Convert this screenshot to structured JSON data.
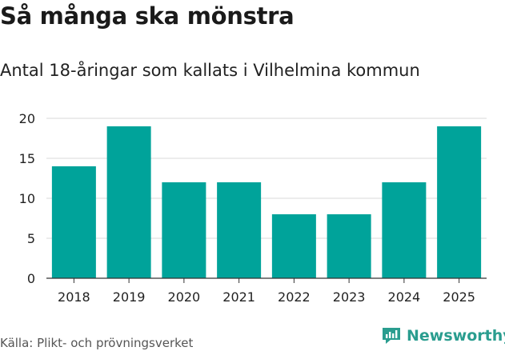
{
  "header": {
    "title": "Så många ska mönstra",
    "subtitle": "Antal 18-åringar som kallats i Vilhelmina kommun"
  },
  "footer": {
    "source": "Källa: Plikt- och prövningsverket",
    "brand": "Newsworthy"
  },
  "colors": {
    "bar": "#00a39a",
    "grid": "#d9d9d9",
    "brand": "#2a9d8f"
  },
  "icons": {
    "brand_logo": "newsworthy-chart-icon"
  },
  "chart_data": {
    "type": "bar",
    "categories": [
      "2018",
      "2019",
      "2020",
      "2021",
      "2022",
      "2023",
      "2024",
      "2025"
    ],
    "values": [
      14,
      19,
      12,
      12,
      8,
      8,
      12,
      19
    ],
    "y_ticks": [
      "0",
      "5",
      "10",
      "15",
      "20"
    ],
    "ylim": [
      0,
      20
    ],
    "grid": true,
    "legend": "none"
  }
}
